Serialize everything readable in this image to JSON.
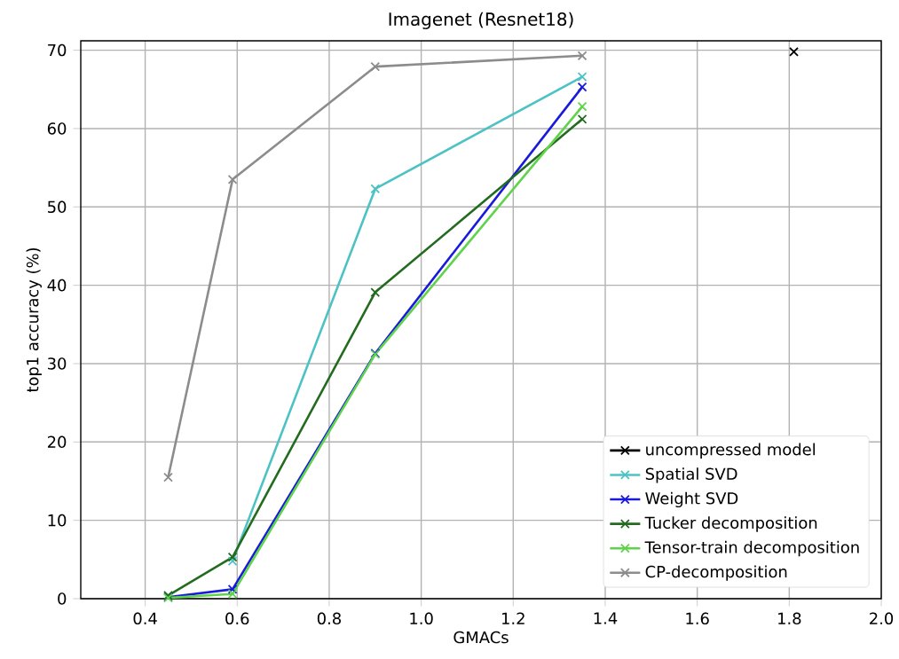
{
  "chart_data": {
    "type": "line",
    "title": "Imagenet (Resnet18)",
    "xlabel": "GMACs",
    "ylabel": "top1 accuracy (%)",
    "xlim": [
      0.26,
      2.0
    ],
    "ylim": [
      0,
      71.2
    ],
    "xticks": [
      0.4,
      0.6,
      0.8,
      {
        "value": 1.0,
        "label": "1.0"
      },
      1.2,
      1.4,
      1.6,
      1.8,
      {
        "value": 2.0,
        "label": "2.0"
      }
    ],
    "yticks": [
      0,
      10,
      20,
      30,
      40,
      50,
      60,
      70
    ],
    "grid": true,
    "legend": "bottom right",
    "marker": "cross",
    "line_style": "solid",
    "series": [
      {
        "name": "uncompressed model",
        "color": "#000000",
        "x": [
          1.81
        ],
        "values": [
          69.8
        ]
      },
      {
        "name": "Spatial SVD",
        "color": "#4cc2c4",
        "x": [
          0.59,
          0.9,
          1.35
        ],
        "values": [
          4.8,
          52.3,
          66.6
        ]
      },
      {
        "name": "Weight SVD",
        "color": "#1a1adb",
        "x": [
          0.45,
          0.59,
          0.9,
          1.35
        ],
        "values": [
          0.2,
          1.2,
          31.3,
          65.3
        ]
      },
      {
        "name": "Tucker decomposition",
        "color": "#236b1f",
        "x": [
          0.45,
          0.59,
          0.9,
          1.35
        ],
        "values": [
          0.4,
          5.3,
          39.1,
          61.2
        ]
      },
      {
        "name": "Tensor-train decomposition",
        "color": "#5fd34a",
        "x": [
          0.45,
          0.59,
          0.9,
          1.35
        ],
        "values": [
          0.1,
          0.6,
          31.2,
          62.8
        ]
      },
      {
        "name": "CP-decomposition",
        "color": "#8c8c8c",
        "x": [
          0.45,
          0.59,
          0.9,
          1.35
        ],
        "values": [
          15.5,
          53.5,
          67.9,
          69.3
        ]
      }
    ]
  }
}
